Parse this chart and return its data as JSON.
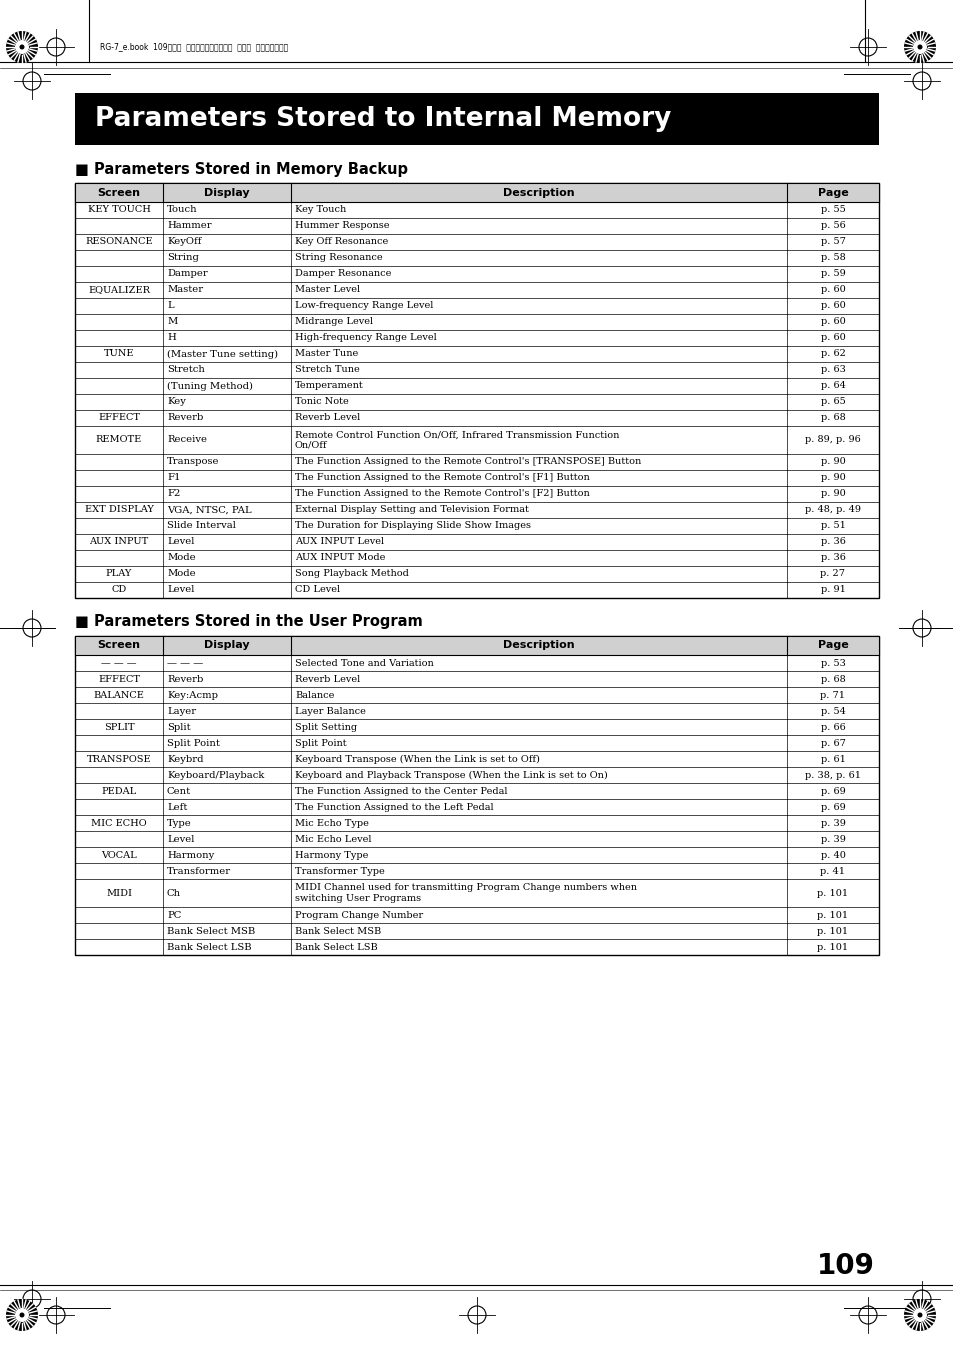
{
  "page_header": "RG-7_e.book  109ページ  ２００５年２月１４日  月曜日  午前９時４５分",
  "main_title": "Parameters Stored to Internal Memory",
  "section1_title": "■ Parameters Stored in Memory Backup",
  "section2_title": "■ Parameters Stored in the User Program",
  "page_number": "109",
  "table1_headers": [
    "Screen",
    "Display",
    "Description",
    "Page"
  ],
  "table1_rows": [
    [
      "KEY TOUCH",
      "Touch",
      "Key Touch",
      "p. 55"
    ],
    [
      "",
      "Hammer",
      "Hummer Response",
      "p. 56"
    ],
    [
      "RESONANCE",
      "KeyOff",
      "Key Off Resonance",
      "p. 57"
    ],
    [
      "",
      "String",
      "String Resonance",
      "p. 58"
    ],
    [
      "",
      "Damper",
      "Damper Resonance",
      "p. 59"
    ],
    [
      "EQUALIZER",
      "Master",
      "Master Level",
      "p. 60"
    ],
    [
      "",
      "L",
      "Low-frequency Range Level",
      "p. 60"
    ],
    [
      "",
      "M",
      "Midrange Level",
      "p. 60"
    ],
    [
      "",
      "H",
      "High-frequency Range Level",
      "p. 60"
    ],
    [
      "TUNE",
      "(Master Tune setting)",
      "Master Tune",
      "p. 62"
    ],
    [
      "",
      "Stretch",
      "Stretch Tune",
      "p. 63"
    ],
    [
      "",
      "(Tuning Method)",
      "Temperament",
      "p. 64"
    ],
    [
      "",
      "Key",
      "Tonic Note",
      "p. 65"
    ],
    [
      "EFFECT",
      "Reverb",
      "Reverb Level",
      "p. 68"
    ],
    [
      "REMOTE",
      "Receive",
      "Remote Control Function On/Off, Infrared Transmission Function\nOn/Off",
      "p. 89, p. 96"
    ],
    [
      "",
      "Transpose",
      "The Function Assigned to the Remote Control's [TRANSPOSE] Button",
      "p. 90"
    ],
    [
      "",
      "F1",
      "The Function Assigned to the Remote Control's [F1] Button",
      "p. 90"
    ],
    [
      "",
      "F2",
      "The Function Assigned to the Remote Control's [F2] Button",
      "p. 90"
    ],
    [
      "EXT DISPLAY",
      "VGA, NTSC, PAL",
      "External Display Setting and Television Format",
      "p. 48, p. 49"
    ],
    [
      "",
      "Slide Interval",
      "The Duration for Displaying Slide Show Images",
      "p. 51"
    ],
    [
      "AUX INPUT",
      "Level",
      "AUX INPUT Level",
      "p. 36"
    ],
    [
      "",
      "Mode",
      "AUX INPUT Mode",
      "p. 36"
    ],
    [
      "PLAY",
      "Mode",
      "Song Playback Method",
      "p. 27"
    ],
    [
      "CD",
      "Level",
      "CD Level",
      "p. 91"
    ]
  ],
  "table2_headers": [
    "Screen",
    "Display",
    "Description",
    "Page"
  ],
  "table2_rows": [
    [
      "— — —",
      "— — —",
      "Selected Tone and Variation",
      "p. 53"
    ],
    [
      "EFFECT",
      "Reverb",
      "Reverb Level",
      "p. 68"
    ],
    [
      "BALANCE",
      "Key:Acmp",
      "Balance",
      "p. 71"
    ],
    [
      "",
      "Layer",
      "Layer Balance",
      "p. 54"
    ],
    [
      "SPLIT",
      "Split",
      "Split Setting",
      "p. 66"
    ],
    [
      "",
      "Split Point",
      "Split Point",
      "p. 67"
    ],
    [
      "TRANSPOSE",
      "Keybrd",
      "Keyboard Transpose (When the Link is set to Off)",
      "p. 61"
    ],
    [
      "",
      "Keyboard/Playback",
      "Keyboard and Playback Transpose (When the Link is set to On)",
      "p. 38, p. 61"
    ],
    [
      "PEDAL",
      "Cent",
      "The Function Assigned to the Center Pedal",
      "p. 69"
    ],
    [
      "",
      "Left",
      "The Function Assigned to the Left Pedal",
      "p. 69"
    ],
    [
      "MIC ECHO",
      "Type",
      "Mic Echo Type",
      "p. 39"
    ],
    [
      "",
      "Level",
      "Mic Echo Level",
      "p. 39"
    ],
    [
      "VOCAL",
      "Harmony",
      "Harmony Type",
      "p. 40"
    ],
    [
      "",
      "Transformer",
      "Transformer Type",
      "p. 41"
    ],
    [
      "MIDI",
      "Ch",
      "MIDI Channel used for transmitting Program Change numbers when\nswitching User Programs",
      "p. 101"
    ],
    [
      "",
      "PC",
      "Program Change Number",
      "p. 101"
    ],
    [
      "",
      "Bank Select MSB",
      "Bank Select MSB",
      "p. 101"
    ],
    [
      "",
      "Bank Select LSB",
      "Bank Select LSB",
      "p. 101"
    ]
  ]
}
